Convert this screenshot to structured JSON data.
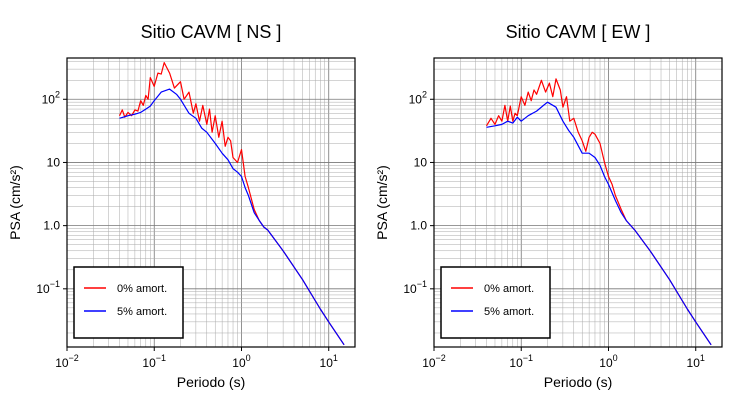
{
  "chart_data": [
    {
      "type": "line",
      "title": "Sitio CAVM [ NS ]",
      "xlabel": "Periodo (s)",
      "ylabel": "PSA (cm/s²)",
      "xscale": "log",
      "yscale": "log",
      "xlim": [
        0.01,
        20
      ],
      "ylim": [
        0.012,
        450
      ],
      "x_ticks": [
        {
          "value": 0.01,
          "base": "10",
          "exp": "−2"
        },
        {
          "value": 0.1,
          "base": "10",
          "exp": "−1"
        },
        {
          "value": 1,
          "base": "10",
          "exp": "0"
        },
        {
          "value": 10,
          "base": "10",
          "exp": "1"
        }
      ],
      "y_ticks": [
        {
          "value": 0.1,
          "base": "10",
          "exp": "−1"
        },
        {
          "value": 1,
          "text": "1.0"
        },
        {
          "value": 10,
          "text": "10"
        },
        {
          "value": 100,
          "base": "10",
          "exp": "2"
        }
      ],
      "grid": true,
      "legend_position": "bottom-left",
      "series": [
        {
          "name": "0% amort.",
          "color": "#ff0000",
          "x": [
            0.04,
            0.043,
            0.046,
            0.05,
            0.055,
            0.06,
            0.065,
            0.07,
            0.075,
            0.08,
            0.085,
            0.09,
            0.1,
            0.11,
            0.12,
            0.13,
            0.15,
            0.17,
            0.2,
            0.22,
            0.25,
            0.28,
            0.3,
            0.33,
            0.36,
            0.4,
            0.43,
            0.46,
            0.5,
            0.55,
            0.6,
            0.65,
            0.7,
            0.75,
            0.8,
            0.9,
            1.0,
            1.1,
            1.2,
            1.4,
            1.6,
            1.8,
            2,
            3,
            5,
            8,
            10,
            15
          ],
          "y": [
            55,
            68,
            52,
            62,
            55,
            68,
            65,
            95,
            80,
            115,
            100,
            220,
            160,
            260,
            250,
            380,
            260,
            150,
            190,
            100,
            130,
            60,
            85,
            45,
            80,
            40,
            70,
            30,
            55,
            25,
            45,
            18,
            25,
            22,
            12,
            10,
            16,
            6,
            4,
            1.8,
            1.2,
            0.95,
            0.85,
            0.4,
            0.14,
            0.048,
            0.03,
            0.013
          ]
        },
        {
          "name": "5% amort.",
          "color": "#0000ff",
          "x": [
            0.04,
            0.05,
            0.06,
            0.07,
            0.08,
            0.09,
            0.1,
            0.12,
            0.15,
            0.18,
            0.2,
            0.25,
            0.3,
            0.35,
            0.4,
            0.5,
            0.6,
            0.7,
            0.8,
            0.9,
            1.0,
            1.1,
            1.2,
            1.4,
            1.6,
            1.8,
            2,
            3,
            5,
            8,
            10,
            15
          ],
          "y": [
            50,
            55,
            58,
            62,
            70,
            78,
            95,
            130,
            145,
            120,
            100,
            60,
            50,
            35,
            30,
            20,
            14,
            11,
            8,
            7,
            6,
            4,
            3,
            1.6,
            1.2,
            0.95,
            0.85,
            0.4,
            0.14,
            0.048,
            0.03,
            0.013
          ]
        }
      ]
    },
    {
      "type": "line",
      "title": "Sitio CAVM [ EW ]",
      "xlabel": "Periodo (s)",
      "ylabel": "PSA (cm/s²)",
      "xscale": "log",
      "yscale": "log",
      "xlim": [
        0.01,
        20
      ],
      "ylim": [
        0.012,
        450
      ],
      "x_ticks": [
        {
          "value": 0.01,
          "base": "10",
          "exp": "−2"
        },
        {
          "value": 0.1,
          "base": "10",
          "exp": "−1"
        },
        {
          "value": 1,
          "base": "10",
          "exp": "0"
        },
        {
          "value": 10,
          "base": "10",
          "exp": "1"
        }
      ],
      "y_ticks": [
        {
          "value": 0.1,
          "base": "10",
          "exp": "−1"
        },
        {
          "value": 1,
          "text": "1.0"
        },
        {
          "value": 10,
          "text": "10"
        },
        {
          "value": 100,
          "base": "10",
          "exp": "2"
        }
      ],
      "grid": true,
      "legend_position": "bottom-left",
      "series": [
        {
          "name": "0% amort.",
          "color": "#ff0000",
          "x": [
            0.04,
            0.045,
            0.05,
            0.055,
            0.06,
            0.065,
            0.07,
            0.075,
            0.08,
            0.085,
            0.09,
            0.1,
            0.11,
            0.12,
            0.13,
            0.14,
            0.15,
            0.17,
            0.19,
            0.21,
            0.23,
            0.25,
            0.28,
            0.3,
            0.33,
            0.36,
            0.4,
            0.45,
            0.5,
            0.55,
            0.6,
            0.65,
            0.7,
            0.8,
            0.9,
            1.0,
            1.1,
            1.2,
            1.4,
            1.6,
            2,
            3,
            5,
            8,
            10,
            15
          ],
          "y": [
            38,
            50,
            40,
            55,
            45,
            80,
            45,
            78,
            45,
            60,
            55,
            110,
            80,
            130,
            95,
            140,
            120,
            200,
            130,
            180,
            110,
            210,
            140,
            75,
            110,
            45,
            50,
            30,
            22,
            15,
            25,
            30,
            28,
            20,
            10,
            6,
            4.5,
            3,
            1.8,
            1.2,
            0.85,
            0.4,
            0.14,
            0.048,
            0.03,
            0.013
          ]
        },
        {
          "name": "5% amort.",
          "color": "#0000ff",
          "x": [
            0.04,
            0.05,
            0.06,
            0.07,
            0.08,
            0.09,
            0.1,
            0.12,
            0.15,
            0.18,
            0.2,
            0.25,
            0.3,
            0.35,
            0.4,
            0.5,
            0.6,
            0.7,
            0.8,
            0.9,
            1.0,
            1.2,
            1.4,
            1.6,
            2,
            3,
            5,
            8,
            10,
            15
          ],
          "y": [
            36,
            38,
            40,
            45,
            42,
            52,
            45,
            55,
            65,
            80,
            90,
            75,
            45,
            32,
            25,
            14,
            14,
            12,
            9,
            6,
            4.5,
            2.5,
            1.6,
            1.2,
            0.85,
            0.4,
            0.14,
            0.048,
            0.03,
            0.013
          ]
        }
      ]
    }
  ]
}
